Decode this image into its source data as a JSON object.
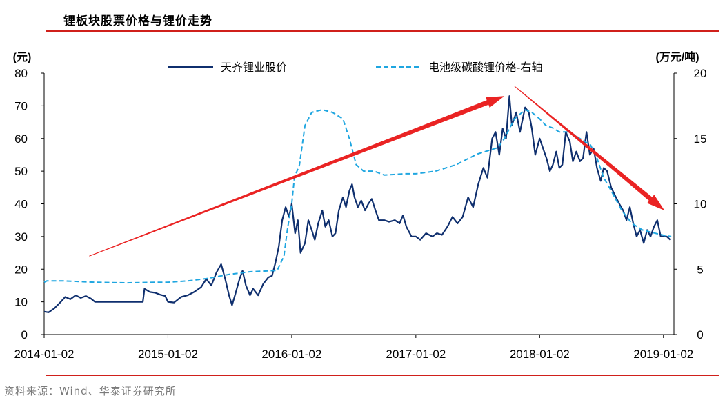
{
  "title": "锂板块股票价格与锂价走势",
  "source": "资料来源：Wind、华泰证券研究所",
  "chart_data": {
    "type": "line",
    "y_left": {
      "unit_label": "(元)",
      "range": [
        0,
        80
      ],
      "ticks": [
        0,
        10,
        20,
        30,
        40,
        50,
        60,
        70,
        80
      ]
    },
    "y_right": {
      "unit_label": "(万元/吨)",
      "range": [
        0,
        20
      ],
      "ticks": [
        0,
        5,
        10,
        15,
        20
      ]
    },
    "x_ticks": [
      "2014-01-02",
      "2015-01-02",
      "2016-01-02",
      "2017-01-02",
      "2018-01-02",
      "2019-01-02"
    ],
    "x_range": [
      "2014-01-02",
      "2019-02-02"
    ],
    "legend_position": "top",
    "series": [
      {
        "name": "天齐锂业股价",
        "axis": "left",
        "color": "#0f2f6e",
        "style": "solid",
        "points": [
          [
            "2014-01-02",
            7
          ],
          [
            "2014-01-15",
            6.8
          ],
          [
            "2014-02-01",
            8
          ],
          [
            "2014-02-20",
            10
          ],
          [
            "2014-03-05",
            11.5
          ],
          [
            "2014-03-20",
            10.8
          ],
          [
            "2014-04-05",
            12
          ],
          [
            "2014-04-20",
            11.2
          ],
          [
            "2014-05-05",
            11.8
          ],
          [
            "2014-05-20",
            11
          ],
          [
            "2014-06-01",
            10
          ],
          [
            "2014-07-01",
            10
          ],
          [
            "2014-08-01",
            10
          ],
          [
            "2014-09-01",
            10
          ],
          [
            "2014-10-01",
            10
          ],
          [
            "2014-10-20",
            10
          ],
          [
            "2014-10-25",
            14
          ],
          [
            "2014-11-10",
            13
          ],
          [
            "2014-11-25",
            12.8
          ],
          [
            "2014-12-10",
            12.2
          ],
          [
            "2014-12-25",
            11.8
          ],
          [
            "2015-01-02",
            10
          ],
          [
            "2015-01-20",
            9.8
          ],
          [
            "2015-02-10",
            11.5
          ],
          [
            "2015-03-01",
            12
          ],
          [
            "2015-03-20",
            13
          ],
          [
            "2015-04-10",
            14.5
          ],
          [
            "2015-04-25",
            17
          ],
          [
            "2015-05-10",
            15
          ],
          [
            "2015-05-25",
            19
          ],
          [
            "2015-06-08",
            21.5
          ],
          [
            "2015-06-20",
            17
          ],
          [
            "2015-07-01",
            12
          ],
          [
            "2015-07-10",
            9
          ],
          [
            "2015-07-20",
            12.5
          ],
          [
            "2015-08-01",
            17
          ],
          [
            "2015-08-10",
            19.5
          ],
          [
            "2015-08-20",
            15
          ],
          [
            "2015-09-01",
            12
          ],
          [
            "2015-09-10",
            14
          ],
          [
            "2015-09-25",
            12
          ],
          [
            "2015-10-10",
            15.5
          ],
          [
            "2015-10-25",
            17.5
          ],
          [
            "2015-11-05",
            18
          ],
          [
            "2015-11-15",
            22
          ],
          [
            "2015-11-25",
            27
          ],
          [
            "2015-12-05",
            35
          ],
          [
            "2015-12-15",
            39
          ],
          [
            "2015-12-25",
            36
          ],
          [
            "2016-01-02",
            40
          ],
          [
            "2016-01-12",
            31
          ],
          [
            "2016-01-20",
            35
          ],
          [
            "2016-01-28",
            25
          ],
          [
            "2016-02-10",
            28
          ],
          [
            "2016-02-20",
            35
          ],
          [
            "2016-03-01",
            32
          ],
          [
            "2016-03-10",
            29
          ],
          [
            "2016-03-20",
            34
          ],
          [
            "2016-04-01",
            38
          ],
          [
            "2016-04-10",
            33
          ],
          [
            "2016-04-20",
            35
          ],
          [
            "2016-05-01",
            30
          ],
          [
            "2016-05-10",
            31
          ],
          [
            "2016-05-20",
            38
          ],
          [
            "2016-06-01",
            42
          ],
          [
            "2016-06-10",
            39
          ],
          [
            "2016-06-20",
            44
          ],
          [
            "2016-06-28",
            46
          ],
          [
            "2016-07-05",
            42
          ],
          [
            "2016-07-15",
            39
          ],
          [
            "2016-07-25",
            41
          ],
          [
            "2016-08-05",
            38
          ],
          [
            "2016-08-15",
            40
          ],
          [
            "2016-08-25",
            41.5
          ],
          [
            "2016-09-05",
            38
          ],
          [
            "2016-09-15",
            35
          ],
          [
            "2016-10-01",
            35
          ],
          [
            "2016-10-15",
            34.5
          ],
          [
            "2016-11-01",
            35
          ],
          [
            "2016-11-15",
            34
          ],
          [
            "2016-11-25",
            36.5
          ],
          [
            "2016-12-05",
            33
          ],
          [
            "2016-12-20",
            30
          ],
          [
            "2017-01-02",
            30
          ],
          [
            "2017-01-15",
            29
          ],
          [
            "2017-02-01",
            31
          ],
          [
            "2017-02-20",
            30
          ],
          [
            "2017-03-05",
            31
          ],
          [
            "2017-03-20",
            30.5
          ],
          [
            "2017-04-05",
            33
          ],
          [
            "2017-04-20",
            36
          ],
          [
            "2017-05-05",
            34
          ],
          [
            "2017-05-20",
            36
          ],
          [
            "2017-06-05",
            42
          ],
          [
            "2017-06-20",
            39
          ],
          [
            "2017-07-05",
            46
          ],
          [
            "2017-07-20",
            51
          ],
          [
            "2017-08-01",
            48
          ],
          [
            "2017-08-15",
            60
          ],
          [
            "2017-08-25",
            62
          ],
          [
            "2017-09-05",
            55
          ],
          [
            "2017-09-15",
            63
          ],
          [
            "2017-09-25",
            60
          ],
          [
            "2017-10-05",
            73
          ],
          [
            "2017-10-12",
            64
          ],
          [
            "2017-10-25",
            68
          ],
          [
            "2017-11-05",
            62
          ],
          [
            "2017-11-20",
            69.5
          ],
          [
            "2017-12-01",
            68
          ],
          [
            "2017-12-10",
            63
          ],
          [
            "2017-12-20",
            55
          ],
          [
            "2018-01-02",
            60
          ],
          [
            "2018-01-12",
            57
          ],
          [
            "2018-01-22",
            54
          ],
          [
            "2018-02-01",
            50
          ],
          [
            "2018-02-10",
            52
          ],
          [
            "2018-02-20",
            56
          ],
          [
            "2018-03-01",
            51
          ],
          [
            "2018-03-10",
            52
          ],
          [
            "2018-03-20",
            62
          ],
          [
            "2018-04-01",
            59
          ],
          [
            "2018-04-10",
            53
          ],
          [
            "2018-04-20",
            56
          ],
          [
            "2018-05-01",
            53
          ],
          [
            "2018-05-10",
            54
          ],
          [
            "2018-05-20",
            62
          ],
          [
            "2018-05-30",
            55
          ],
          [
            "2018-06-10",
            57
          ],
          [
            "2018-06-20",
            51
          ],
          [
            "2018-07-01",
            47
          ],
          [
            "2018-07-10",
            51
          ],
          [
            "2018-07-20",
            50
          ],
          [
            "2018-08-01",
            45
          ],
          [
            "2018-08-15",
            42
          ],
          [
            "2018-08-25",
            40
          ],
          [
            "2018-09-05",
            38
          ],
          [
            "2018-09-15",
            35
          ],
          [
            "2018-09-25",
            39
          ],
          [
            "2018-10-05",
            34
          ],
          [
            "2018-10-15",
            30
          ],
          [
            "2018-10-25",
            32
          ],
          [
            "2018-11-05",
            28
          ],
          [
            "2018-11-15",
            32
          ],
          [
            "2018-11-25",
            30
          ],
          [
            "2018-12-05",
            33
          ],
          [
            "2018-12-15",
            35
          ],
          [
            "2018-12-25",
            30
          ],
          [
            "2019-01-02",
            30
          ],
          [
            "2019-01-12",
            30
          ],
          [
            "2019-01-22",
            29
          ]
        ]
      },
      {
        "name": "电池级碳酸锂价格-右轴",
        "axis": "right",
        "color": "#1fa6e0",
        "style": "dashed",
        "points": [
          [
            "2014-01-02",
            4
          ],
          [
            "2014-01-10",
            4.1
          ],
          [
            "2014-03-01",
            4.1
          ],
          [
            "2014-06-01",
            4
          ],
          [
            "2014-09-01",
            3.95
          ],
          [
            "2014-12-01",
            4
          ],
          [
            "2015-01-02",
            4
          ],
          [
            "2015-03-01",
            4.1
          ],
          [
            "2015-05-01",
            4.3
          ],
          [
            "2015-07-01",
            4.6
          ],
          [
            "2015-09-01",
            4.8
          ],
          [
            "2015-11-20",
            4.9
          ],
          [
            "2015-12-10",
            6
          ],
          [
            "2015-12-20",
            8
          ],
          [
            "2016-01-02",
            10
          ],
          [
            "2016-01-10",
            12
          ],
          [
            "2016-01-25",
            13
          ],
          [
            "2016-02-10",
            16
          ],
          [
            "2016-03-01",
            17
          ],
          [
            "2016-04-01",
            17.2
          ],
          [
            "2016-05-01",
            17
          ],
          [
            "2016-06-01",
            16.5
          ],
          [
            "2016-06-20",
            15
          ],
          [
            "2016-07-10",
            13
          ],
          [
            "2016-08-01",
            12.5
          ],
          [
            "2016-09-01",
            12.5
          ],
          [
            "2016-10-01",
            12.2
          ],
          [
            "2016-12-01",
            12.3
          ],
          [
            "2017-01-02",
            12.3
          ],
          [
            "2017-03-01",
            12.5
          ],
          [
            "2017-05-01",
            13
          ],
          [
            "2017-07-01",
            13.8
          ],
          [
            "2017-09-01",
            14.3
          ],
          [
            "2017-09-20",
            15
          ],
          [
            "2017-10-20",
            16.5
          ],
          [
            "2017-11-20",
            17.2
          ],
          [
            "2017-12-10",
            17
          ],
          [
            "2018-01-02",
            16.5
          ],
          [
            "2018-01-20",
            16
          ],
          [
            "2018-02-10",
            15.8
          ],
          [
            "2018-03-01",
            15.5
          ],
          [
            "2018-04-01",
            15.5
          ],
          [
            "2018-05-01",
            15
          ],
          [
            "2018-06-01",
            14.5
          ],
          [
            "2018-06-20",
            13.5
          ],
          [
            "2018-07-10",
            12
          ],
          [
            "2018-08-01",
            11
          ],
          [
            "2018-09-01",
            9.5
          ],
          [
            "2018-10-01",
            8.5
          ],
          [
            "2018-11-01",
            8
          ],
          [
            "2018-12-01",
            7.8
          ],
          [
            "2019-01-02",
            7.6
          ],
          [
            "2019-01-25",
            7.5
          ]
        ]
      }
    ],
    "annotations": [
      {
        "type": "arrow",
        "color": "#ea2323",
        "from": [
          "2014-05-15",
          24
        ],
        "to": [
          "2017-09-20",
          73
        ]
      },
      {
        "type": "arrow",
        "color": "#ea2323",
        "from": [
          "2017-10-20",
          76
        ],
        "to": [
          "2019-01-05",
          38
        ]
      }
    ]
  }
}
